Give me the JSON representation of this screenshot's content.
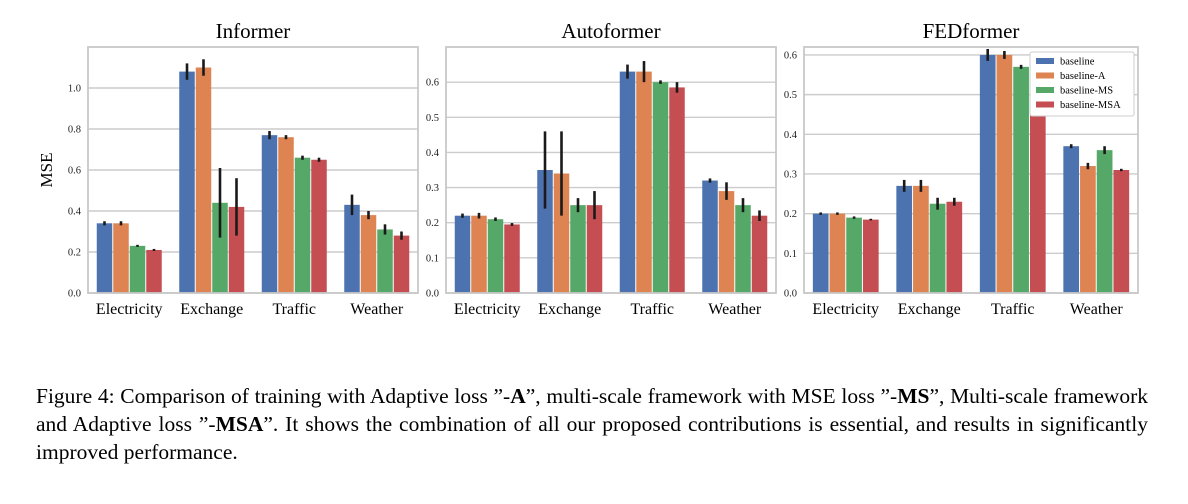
{
  "chart_data": [
    {
      "type": "bar",
      "title": "Informer",
      "ylabel": "MSE",
      "ylim": [
        0,
        1.2
      ],
      "yticks": [
        "0.0",
        "0.2",
        "0.4",
        "0.6",
        "0.8",
        "1.0"
      ],
      "grid": true,
      "categories": [
        "Electricity",
        "Exchange",
        "Traffic",
        "Weather"
      ],
      "series": [
        {
          "name": "baseline",
          "color": "#4c72b0",
          "values": [
            0.34,
            1.08,
            0.77,
            0.43
          ],
          "err": [
            0.01,
            0.04,
            0.02,
            0.05
          ]
        },
        {
          "name": "baseline-A",
          "color": "#dd8452",
          "values": [
            0.34,
            1.1,
            0.76,
            0.38
          ],
          "err": [
            0.01,
            0.04,
            0.01,
            0.02
          ]
        },
        {
          "name": "baseline-MS",
          "color": "#55a868",
          "values": [
            0.23,
            0.44,
            0.66,
            0.31
          ],
          "err": [
            0.005,
            0.17,
            0.01,
            0.025
          ]
        },
        {
          "name": "baseline-MSA",
          "color": "#c44e52",
          "values": [
            0.21,
            0.42,
            0.65,
            0.28
          ],
          "err": [
            0.005,
            0.14,
            0.01,
            0.02
          ]
        }
      ]
    },
    {
      "type": "bar",
      "title": "Autoformer",
      "ylabel": "",
      "ylim": [
        0,
        0.7
      ],
      "yticks": [
        "0.0",
        "0.1",
        "0.2",
        "0.3",
        "0.4",
        "0.5",
        "0.6"
      ],
      "grid": true,
      "categories": [
        "Electricity",
        "Exchange",
        "Traffic",
        "Weather"
      ],
      "series": [
        {
          "name": "baseline",
          "color": "#4c72b0",
          "values": [
            0.22,
            0.35,
            0.63,
            0.32
          ],
          "err": [
            0.006,
            0.11,
            0.02,
            0.006
          ]
        },
        {
          "name": "baseline-A",
          "color": "#dd8452",
          "values": [
            0.22,
            0.34,
            0.63,
            0.29
          ],
          "err": [
            0.008,
            0.12,
            0.03,
            0.025
          ]
        },
        {
          "name": "baseline-MS",
          "color": "#55a868",
          "values": [
            0.21,
            0.25,
            0.6,
            0.25
          ],
          "err": [
            0.005,
            0.02,
            0.005,
            0.02
          ]
        },
        {
          "name": "baseline-MSA",
          "color": "#c44e52",
          "values": [
            0.195,
            0.25,
            0.585,
            0.22
          ],
          "err": [
            0.004,
            0.04,
            0.015,
            0.015
          ]
        }
      ]
    },
    {
      "type": "bar",
      "title": "FEDformer",
      "ylabel": "",
      "ylim": [
        0,
        0.62
      ],
      "yticks": [
        "0.0",
        "0.1",
        "0.2",
        "0.3",
        "0.4",
        "0.5",
        "0.6"
      ],
      "grid": true,
      "legend": "top-right",
      "categories": [
        "Electricity",
        "Exchange",
        "Traffic",
        "Weather"
      ],
      "series": [
        {
          "name": "baseline",
          "color": "#4c72b0",
          "values": [
            0.2,
            0.27,
            0.6,
            0.37
          ],
          "err": [
            0.003,
            0.015,
            0.015,
            0.005
          ]
        },
        {
          "name": "baseline-A",
          "color": "#dd8452",
          "values": [
            0.2,
            0.27,
            0.6,
            0.32
          ],
          "err": [
            0.003,
            0.015,
            0.01,
            0.008
          ]
        },
        {
          "name": "baseline-MS",
          "color": "#55a868",
          "values": [
            0.19,
            0.225,
            0.57,
            0.36
          ],
          "err": [
            0.003,
            0.015,
            0.005,
            0.01
          ]
        },
        {
          "name": "baseline-MSA",
          "color": "#c44e52",
          "values": [
            0.185,
            0.23,
            0.57,
            0.31
          ],
          "err": [
            0.002,
            0.01,
            0.005,
            0.003
          ]
        }
      ]
    }
  ],
  "caption": {
    "p1": "Figure 4: Comparison of training with Adaptive loss ”-",
    "b1": "A",
    "p2": "”, multi-scale framework with MSE loss ”-",
    "b2": "MS",
    "p3": "”, Multi-scale framework and Adaptive loss ”-",
    "b3": "MSA",
    "p4": "”.  It shows the combination of all our proposed contributions is essential, and results in significantly improved performance."
  }
}
